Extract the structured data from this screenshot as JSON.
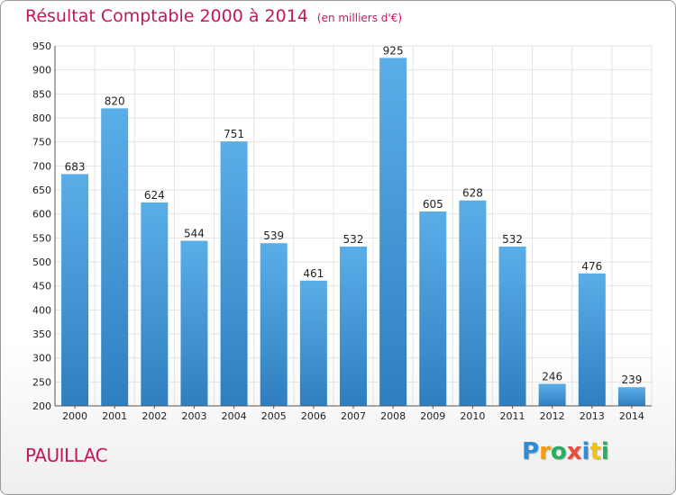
{
  "header": {
    "title": "Résultat Comptable 2000 à 2014",
    "subtitle": "(en milliers d'€)"
  },
  "footer": {
    "city": "PAUILLAC",
    "logo": [
      "P",
      "r",
      "o",
      "x",
      "i",
      "t",
      "i"
    ],
    "logo_colors": [
      "#2e8bd6",
      "#f39c12",
      "#27ae60",
      "#e74c3c",
      "#2e8bd6",
      "#f1c40f",
      "#27ae60"
    ]
  },
  "colors": {
    "bar_light": "#5aaee8",
    "bar_dark": "#2f7fc0",
    "grid": "#e3e3e3",
    "title": "#c2185b"
  },
  "chart_data": {
    "type": "bar",
    "title": "Résultat Comptable 2000 à 2014",
    "subtitle": "(en milliers d'€)",
    "xlabel": "",
    "ylabel": "",
    "categories": [
      "2000",
      "2001",
      "2002",
      "2003",
      "2004",
      "2005",
      "2006",
      "2007",
      "2008",
      "2009",
      "2010",
      "2011",
      "2012",
      "2013",
      "2014"
    ],
    "values": [
      683,
      820,
      624,
      544,
      751,
      539,
      461,
      532,
      925,
      605,
      628,
      532,
      246,
      476,
      239
    ],
    "ylim": [
      200,
      950
    ],
    "yticks": [
      200,
      250,
      300,
      350,
      400,
      450,
      500,
      550,
      600,
      650,
      700,
      750,
      800,
      850,
      900,
      950
    ],
    "grid": true,
    "legend": "none"
  }
}
